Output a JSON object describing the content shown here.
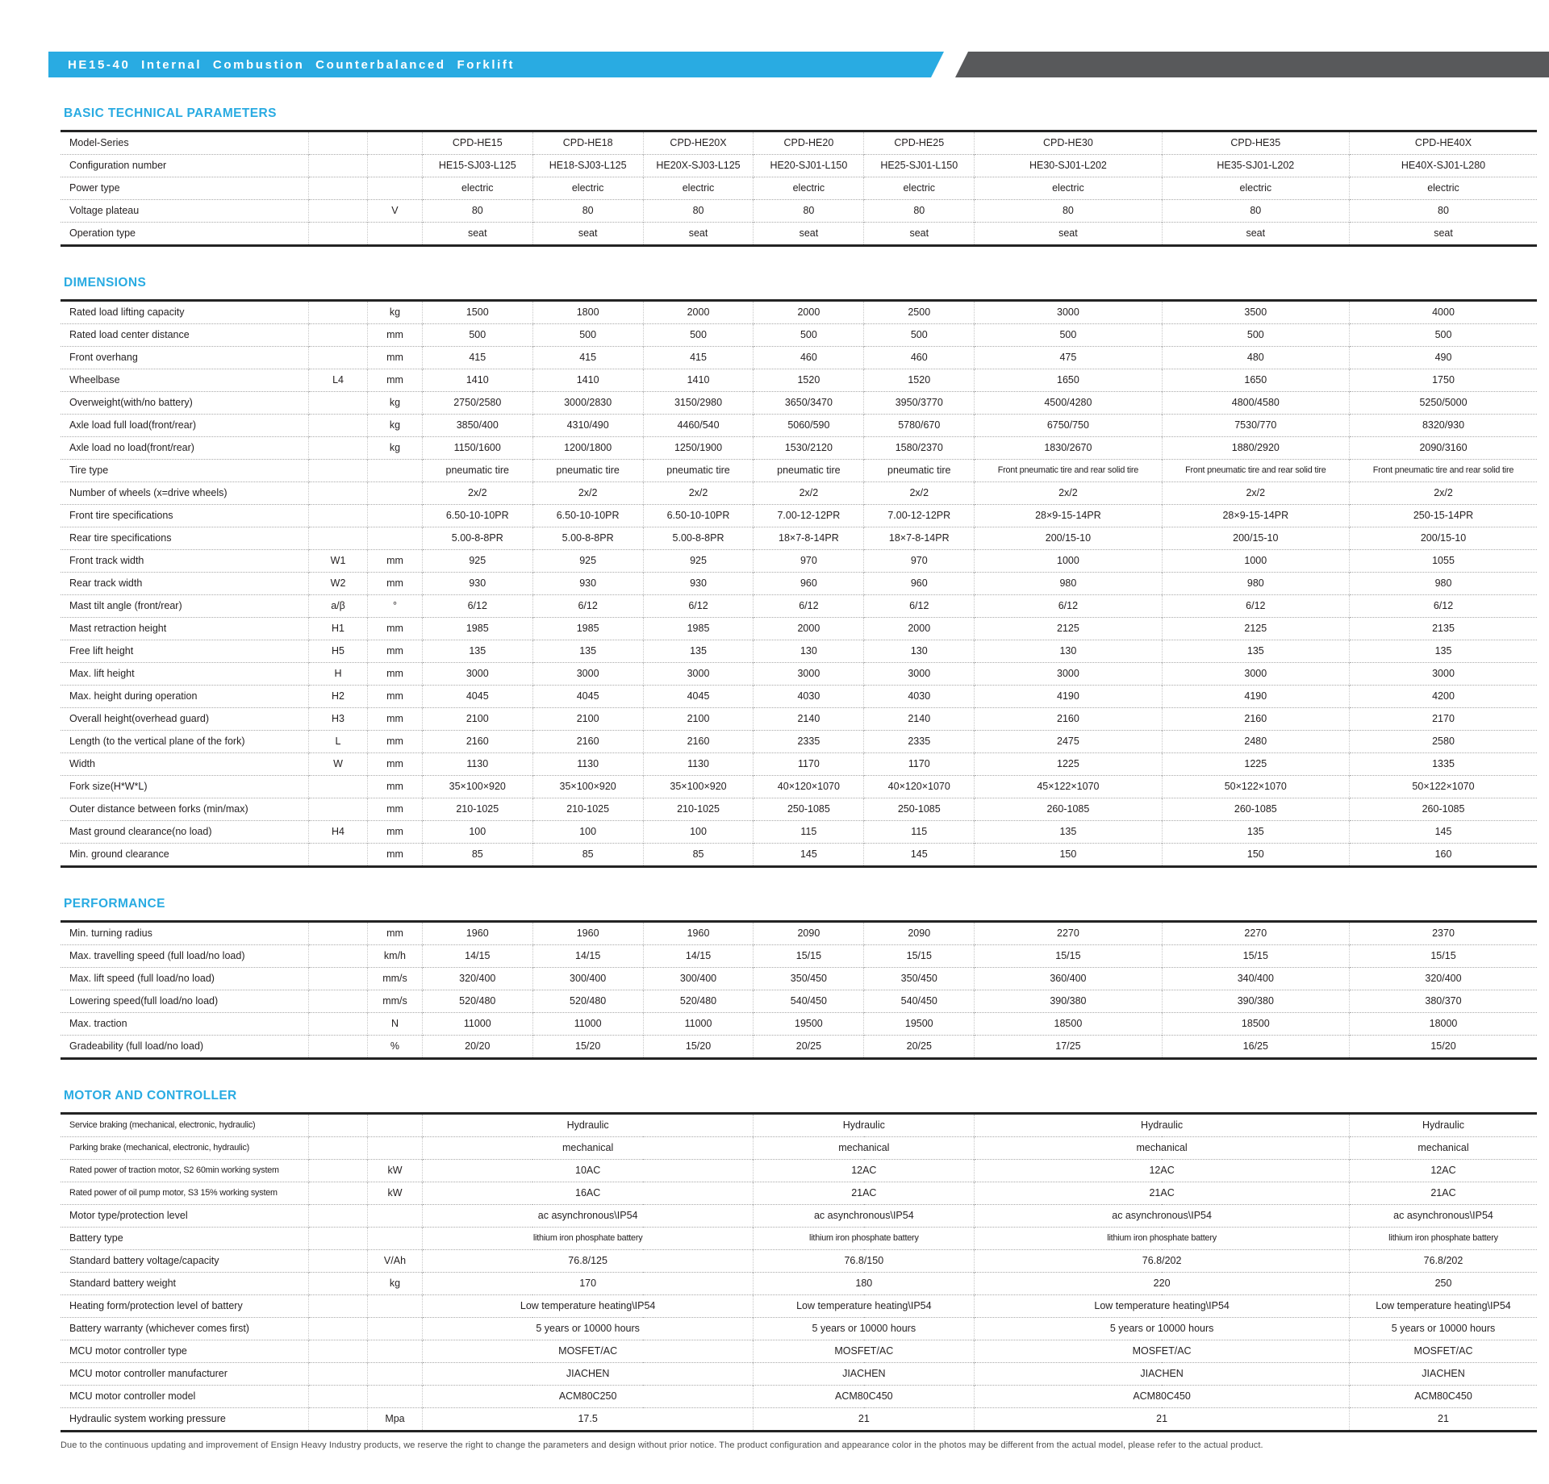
{
  "header": {
    "title": "HE15-40 Internal Combustion Counterbalanced Forklift"
  },
  "colors": {
    "accent": "#29ABE2",
    "header_gray": "#58595B"
  },
  "sections": [
    {
      "title": "BASIC TECHNICAL PARAMETERS",
      "rows": [
        {
          "label": "Model-Series",
          "symbol": "",
          "unit": "",
          "values": [
            "CPD-HE15",
            "CPD-HE18",
            "CPD-HE20X",
            "CPD-HE20",
            "CPD-HE25",
            "CPD-HE30",
            "CPD-HE35",
            "CPD-HE40X"
          ]
        },
        {
          "label": "Configuration number",
          "symbol": "",
          "unit": "",
          "values": [
            "HE15-SJ03-L125",
            "HE18-SJ03-L125",
            "HE20X-SJ03-L125",
            "HE20-SJ01-L150",
            "HE25-SJ01-L150",
            "HE30-SJ01-L202",
            "HE35-SJ01-L202",
            "HE40X-SJ01-L280"
          ]
        },
        {
          "label": "Power type",
          "symbol": "",
          "unit": "",
          "values": [
            "electric",
            "electric",
            "electric",
            "electric",
            "electric",
            "electric",
            "electric",
            "electric"
          ]
        },
        {
          "label": "Voltage plateau",
          "symbol": "",
          "unit": "V",
          "values": [
            "80",
            "80",
            "80",
            "80",
            "80",
            "80",
            "80",
            "80"
          ]
        },
        {
          "label": "Operation type",
          "symbol": "",
          "unit": "",
          "values": [
            "seat",
            "seat",
            "seat",
            "seat",
            "seat",
            "seat",
            "seat",
            "seat"
          ]
        }
      ]
    },
    {
      "title": "DIMENSIONS",
      "rows": [
        {
          "label": "Rated load lifting capacity",
          "symbol": "",
          "unit": "kg",
          "values": [
            "1500",
            "1800",
            "2000",
            "2000",
            "2500",
            "3000",
            "3500",
            "4000"
          ]
        },
        {
          "label": "Rated load center distance",
          "symbol": "",
          "unit": "mm",
          "values": [
            "500",
            "500",
            "500",
            "500",
            "500",
            "500",
            "500",
            "500"
          ]
        },
        {
          "label": "Front overhang",
          "symbol": "",
          "unit": "mm",
          "values": [
            "415",
            "415",
            "415",
            "460",
            "460",
            "475",
            "480",
            "490"
          ]
        },
        {
          "label": "Wheelbase",
          "symbol": "L4",
          "unit": "mm",
          "values": [
            "1410",
            "1410",
            "1410",
            "1520",
            "1520",
            "1650",
            "1650",
            "1750"
          ]
        },
        {
          "label": "Overweight(with/no battery)",
          "symbol": "",
          "unit": "kg",
          "values": [
            "2750/2580",
            "3000/2830",
            "3150/2980",
            "3650/3470",
            "3950/3770",
            "4500/4280",
            "4800/4580",
            "5250/5000"
          ]
        },
        {
          "label": "Axle load  full load(front/rear)",
          "symbol": "",
          "unit": "kg",
          "values": [
            "3850/400",
            "4310/490",
            "4460/540",
            "5060/590",
            "5780/670",
            "6750/750",
            "7530/770",
            "8320/930"
          ]
        },
        {
          "label": "Axle load  no load(front/rear)",
          "symbol": "",
          "unit": "kg",
          "values": [
            "1150/1600",
            "1200/1800",
            "1250/1900",
            "1530/2120",
            "1580/2370",
            "1830/2670",
            "1880/2920",
            "2090/3160"
          ]
        },
        {
          "label": "Tire type",
          "symbol": "",
          "unit": "",
          "values": [
            "pneumatic tire",
            "pneumatic tire",
            "pneumatic tire",
            "pneumatic tire",
            "pneumatic tire",
            "Front pneumatic tire and rear solid tire",
            "Front pneumatic tire and rear solid tire",
            "Front pneumatic tire and rear solid tire"
          ]
        },
        {
          "label": "Number of wheels (x=drive wheels)",
          "symbol": "",
          "unit": "",
          "values": [
            "2x/2",
            "2x/2",
            "2x/2",
            "2x/2",
            "2x/2",
            "2x/2",
            "2x/2",
            "2x/2"
          ]
        },
        {
          "label": "Front tire specifications",
          "symbol": "",
          "unit": "",
          "values": [
            "6.50-10-10PR",
            "6.50-10-10PR",
            "6.50-10-10PR",
            "7.00-12-12PR",
            "7.00-12-12PR",
            "28×9-15-14PR",
            "28×9-15-14PR",
            "250-15-14PR"
          ]
        },
        {
          "label": "Rear tire specifications",
          "symbol": "",
          "unit": "",
          "values": [
            "5.00-8-8PR",
            "5.00-8-8PR",
            "5.00-8-8PR",
            "18×7-8-14PR",
            "18×7-8-14PR",
            "200/15-10",
            "200/15-10",
            "200/15-10"
          ]
        },
        {
          "label": "Front track width",
          "symbol": "W1",
          "unit": "mm",
          "values": [
            "925",
            "925",
            "925",
            "970",
            "970",
            "1000",
            "1000",
            "1055"
          ]
        },
        {
          "label": "Rear track width",
          "symbol": "W2",
          "unit": "mm",
          "values": [
            "930",
            "930",
            "930",
            "960",
            "960",
            "980",
            "980",
            "980"
          ]
        },
        {
          "label": "Mast tilt angle (front/rear)",
          "symbol": "a/β",
          "unit": "°",
          "values": [
            "6/12",
            "6/12",
            "6/12",
            "6/12",
            "6/12",
            "6/12",
            "6/12",
            "6/12"
          ]
        },
        {
          "label": "Mast  retraction height",
          "symbol": "H1",
          "unit": "mm",
          "values": [
            "1985",
            "1985",
            "1985",
            "2000",
            "2000",
            "2125",
            "2125",
            "2135"
          ]
        },
        {
          "label": "Free lift height",
          "symbol": "H5",
          "unit": "mm",
          "values": [
            "135",
            "135",
            "135",
            "130",
            "130",
            "130",
            "135",
            "135"
          ]
        },
        {
          "label": "Max. lift height",
          "symbol": "H",
          "unit": "mm",
          "values": [
            "3000",
            "3000",
            "3000",
            "3000",
            "3000",
            "3000",
            "3000",
            "3000"
          ]
        },
        {
          "label": "Max. height during operation",
          "symbol": "H2",
          "unit": "mm",
          "values": [
            "4045",
            "4045",
            "4045",
            "4030",
            "4030",
            "4190",
            "4190",
            "4200"
          ]
        },
        {
          "label": "Overall height(overhead guard)",
          "symbol": "H3",
          "unit": "mm",
          "values": [
            "2100",
            "2100",
            "2100",
            "2140",
            "2140",
            "2160",
            "2160",
            "2170"
          ]
        },
        {
          "label": "Length (to the vertical plane of the fork)",
          "symbol": "L",
          "unit": "mm",
          "values": [
            "2160",
            "2160",
            "2160",
            "2335",
            "2335",
            "2475",
            "2480",
            "2580"
          ]
        },
        {
          "label": "Width",
          "symbol": "W",
          "unit": "mm",
          "values": [
            "1130",
            "1130",
            "1130",
            "1170",
            "1170",
            "1225",
            "1225",
            "1335"
          ]
        },
        {
          "label": "Fork size(H*W*L)",
          "symbol": "",
          "unit": "mm",
          "values": [
            "35×100×920",
            "35×100×920",
            "35×100×920",
            "40×120×1070",
            "40×120×1070",
            "45×122×1070",
            "50×122×1070",
            "50×122×1070"
          ]
        },
        {
          "label": "Outer distance between forks (min/max)",
          "symbol": "",
          "unit": "mm",
          "values": [
            "210-1025",
            "210-1025",
            "210-1025",
            "250-1085",
            "250-1085",
            "260-1085",
            "260-1085",
            "260-1085"
          ]
        },
        {
          "label": "Mast ground clearance(no load)",
          "symbol": "H4",
          "unit": "mm",
          "values": [
            "100",
            "100",
            "100",
            "115",
            "115",
            "135",
            "135",
            "145"
          ]
        },
        {
          "label": "Min. ground clearance",
          "symbol": "",
          "unit": "mm",
          "values": [
            "85",
            "85",
            "85",
            "145",
            "145",
            "150",
            "150",
            "160"
          ]
        }
      ]
    },
    {
      "title": "PERFORMANCE",
      "rows": [
        {
          "label": "Min. turning radius",
          "symbol": "",
          "unit": "mm",
          "values": [
            "1960",
            "1960",
            "1960",
            "2090",
            "2090",
            "2270",
            "2270",
            "2370"
          ]
        },
        {
          "label": "Max. travelling  speed (full load/no load)",
          "symbol": "",
          "unit": "km/h",
          "values": [
            "14/15",
            "14/15",
            "14/15",
            "15/15",
            "15/15",
            "15/15",
            "15/15",
            "15/15"
          ]
        },
        {
          "label": "Max. lift speed (full load/no load)",
          "symbol": "",
          "unit": "mm/s",
          "values": [
            "320/400",
            "300/400",
            "300/400",
            "350/450",
            "350/450",
            "360/400",
            "340/400",
            "320/400"
          ]
        },
        {
          "label": "Lowering speed(full load/no load)",
          "symbol": "",
          "unit": "mm/s",
          "values": [
            "520/480",
            "520/480",
            "520/480",
            "540/450",
            "540/450",
            "390/380",
            "390/380",
            "380/370"
          ]
        },
        {
          "label": "Max. traction",
          "symbol": "",
          "unit": "N",
          "values": [
            "11000",
            "11000",
            "11000",
            "19500",
            "19500",
            "18500",
            "18500",
            "18000"
          ]
        },
        {
          "label": "Gradeability (full load/no load)",
          "symbol": "",
          "unit": "%",
          "values": [
            "20/20",
            "15/20",
            "15/20",
            "20/25",
            "20/25",
            "17/25",
            "16/25",
            "15/20"
          ]
        }
      ]
    },
    {
      "title": "MOTOR AND CONTROLLER",
      "spans": [
        3,
        2,
        2,
        1
      ],
      "rows": [
        {
          "label": "Service braking (mechanical, electronic, hydraulic)",
          "symbol": "",
          "unit": "",
          "values": [
            "Hydraulic",
            "Hydraulic",
            "Hydraulic",
            "Hydraulic"
          ]
        },
        {
          "label": "Parking brake (mechanical, electronic, hydraulic)",
          "symbol": "",
          "unit": "",
          "values": [
            "mechanical",
            "mechanical",
            "mechanical",
            "mechanical"
          ]
        },
        {
          "label": "Rated power of traction motor, S2 60min working system",
          "symbol": "",
          "unit": "kW",
          "values": [
            "10AC",
            "12AC",
            "12AC",
            "12AC"
          ]
        },
        {
          "label": "Rated power of oil pump motor, S3 15% working system",
          "symbol": "",
          "unit": "kW",
          "values": [
            "16AC",
            "21AC",
            "21AC",
            "21AC"
          ]
        },
        {
          "label": "Motor type/protection level",
          "symbol": "",
          "unit": "",
          "values": [
            "ac asynchronous\\IP54",
            "ac asynchronous\\IP54",
            "ac asynchronous\\IP54",
            "ac asynchronous\\IP54"
          ]
        },
        {
          "label": "Battery type",
          "symbol": "",
          "unit": "",
          "values": [
            "lithium iron phosphate battery",
            "lithium iron phosphate battery",
            "lithium iron phosphate battery",
            "lithium iron phosphate battery"
          ]
        },
        {
          "label": "Standard battery voltage/capacity",
          "symbol": "",
          "unit": "V/Ah",
          "values": [
            "76.8/125",
            "76.8/150",
            "76.8/202",
            "76.8/202"
          ]
        },
        {
          "label": "Standard battery weight",
          "symbol": "",
          "unit": "kg",
          "values": [
            "170",
            "180",
            "220",
            "250"
          ]
        },
        {
          "label": "Heating form/protection level of battery",
          "symbol": "",
          "unit": "",
          "values": [
            "Low temperature heating\\IP54",
            "Low temperature heating\\IP54",
            "Low temperature heating\\IP54",
            "Low temperature heating\\IP54"
          ]
        },
        {
          "label": "Battery warranty (whichever comes first)",
          "symbol": "",
          "unit": "",
          "values": [
            "5 years or 10000 hours",
            "5 years or 10000 hours",
            "5 years or 10000 hours",
            "5 years or 10000 hours"
          ]
        },
        {
          "label": "MCU motor controller type",
          "symbol": "",
          "unit": "",
          "values": [
            "MOSFET/AC",
            "MOSFET/AC",
            "MOSFET/AC",
            "MOSFET/AC"
          ]
        },
        {
          "label": "MCU motor controller manufacturer",
          "symbol": "",
          "unit": "",
          "values": [
            "JIACHEN",
            "JIACHEN",
            "JIACHEN",
            "JIACHEN"
          ]
        },
        {
          "label": "MCU motor controller model",
          "symbol": "",
          "unit": "",
          "values": [
            "ACM80C250",
            "ACM80C450",
            "ACM80C450",
            "ACM80C450"
          ]
        },
        {
          "label": "Hydraulic system working pressure",
          "symbol": "",
          "unit": "Mpa",
          "values": [
            "17.5",
            "21",
            "21",
            "21"
          ]
        }
      ]
    }
  ],
  "footer": {
    "disclaimer": "Due to the continuous updating and improvement of Ensign Heavy Industry products, we reserve the right to change the parameters and design without prior notice. The product configuration and appearance color in the photos may be different from the actual model, please refer to the actual product."
  }
}
